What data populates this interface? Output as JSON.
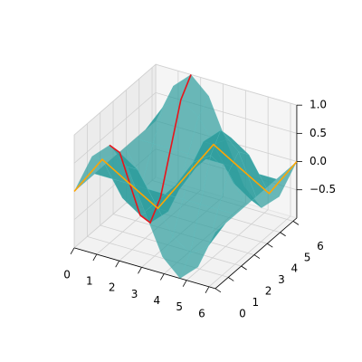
{
  "chart_data": {
    "type": "surface3d",
    "x": [
      0,
      0.79,
      1.57,
      2.36,
      3.14,
      3.93,
      4.71,
      5.5,
      6.28
    ],
    "y": [
      0,
      0.79,
      1.57,
      2.36,
      3.14,
      3.93,
      4.71,
      5.5,
      6.28
    ],
    "z": [
      [
        0,
        0.71,
        1,
        0.71,
        0,
        -0.71,
        -1,
        -0.71,
        0
      ],
      [
        0,
        0.5,
        0.71,
        0.5,
        0,
        -0.5,
        -0.71,
        -0.5,
        0
      ],
      [
        0,
        0,
        0,
        0,
        0,
        0,
        0,
        0,
        0
      ],
      [
        0,
        -0.5,
        -0.71,
        -0.5,
        0,
        0.5,
        0.71,
        0.5,
        0
      ],
      [
        0,
        -0.71,
        -1,
        -0.71,
        0,
        0.71,
        1,
        0.71,
        0
      ],
      [
        0,
        -0.5,
        -0.71,
        -0.5,
        0,
        0.5,
        0.71,
        0.5,
        0
      ],
      [
        0,
        0,
        0,
        0,
        0,
        0,
        0,
        0,
        0
      ],
      [
        0,
        0.5,
        0.71,
        0.5,
        0,
        -0.5,
        -0.71,
        -0.5,
        0
      ],
      [
        0,
        0.71,
        1,
        0.71,
        0,
        -0.71,
        -1,
        -0.71,
        0
      ]
    ],
    "surface_color": "#2e9c9c",
    "lines": [
      {
        "color": "#e8141a",
        "x": [
          1.57,
          1.57,
          1.57,
          1.57,
          1.57,
          1.57,
          1.57,
          1.57,
          1.57
        ],
        "y": [
          0,
          0.79,
          1.57,
          2.36,
          3.14,
          3.93,
          4.71,
          5.5,
          6.28
        ],
        "z": [
          1,
          0.71,
          0,
          -0.71,
          -1,
          -0.71,
          0,
          0.71,
          1
        ]
      },
      {
        "color": "#ffa500",
        "x": [
          0,
          0.79,
          1.57,
          2.36,
          3.14,
          3.93,
          4.71,
          5.5,
          6.28
        ],
        "y": [
          0,
          0.79,
          1.57,
          2.36,
          3.14,
          3.93,
          4.71,
          5.5,
          6.28
        ],
        "z": [
          0,
          0.5,
          0,
          -0.5,
          0,
          0.5,
          0,
          -0.5,
          0
        ]
      }
    ],
    "xlim": [
      0,
      6.28
    ],
    "ylim": [
      0,
      6.28
    ],
    "zlim": [
      -1,
      1
    ],
    "xticks": [
      0,
      1,
      2,
      3,
      4,
      5,
      6
    ],
    "yticks": [
      0,
      1,
      2,
      3,
      4,
      5,
      6
    ],
    "zticks": [
      {
        "value": -0.5,
        "label": "−0.5"
      },
      {
        "value": 0,
        "label": "0.0"
      },
      0.5,
      {
        "value": 1,
        "label": "1.0"
      }
    ],
    "grid": true
  }
}
